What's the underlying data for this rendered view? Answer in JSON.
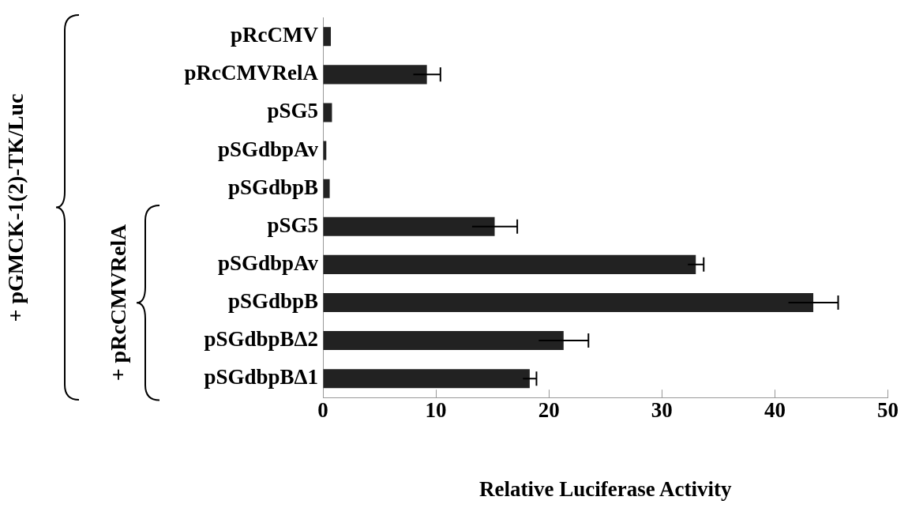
{
  "chart_data": {
    "type": "bar",
    "orientation": "horizontal",
    "xlabel": "Relative Luciferase Activity",
    "categories": [
      "pRcCMV",
      "pRcCMVRelA",
      "pSG5",
      "pSGdbpAv",
      "pSGdbpB",
      "pSG5",
      "pSGdbpAv",
      "pSGdbpB",
      "pSGdbpBΔ2",
      "pSGdbpBΔ1"
    ],
    "values": [
      0.7,
      9.2,
      0.8,
      0.3,
      0.6,
      15.2,
      33.0,
      43.4,
      21.3,
      18.3
    ],
    "errors": [
      null,
      1.2,
      null,
      null,
      null,
      2.0,
      0.7,
      2.2,
      2.2,
      0.6
    ],
    "color": "#222222",
    "xlim": [
      0,
      50
    ],
    "xticks": [
      0,
      10,
      20,
      30,
      40,
      50
    ],
    "grid": false,
    "legend": false,
    "annotations": [
      "+ pGMCK-1(2)-TK/Luc",
      "+ pRcCMVRelA"
    ]
  }
}
